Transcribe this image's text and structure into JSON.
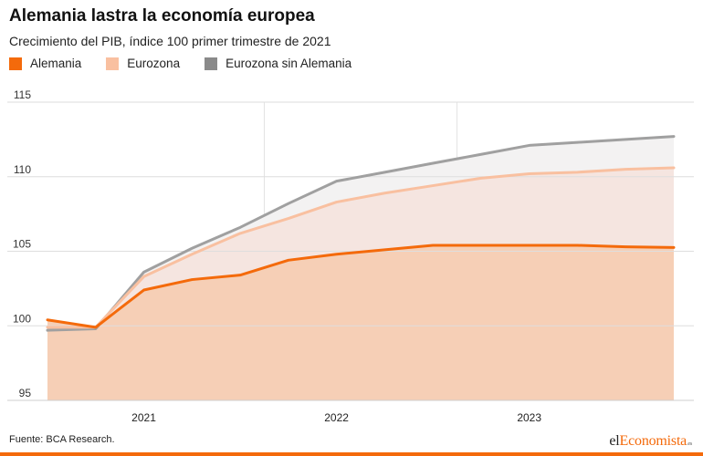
{
  "header": {
    "title": "Alemania lastra la economía europea",
    "subtitle": "Crecimiento del PIB, índice 100 primer trimestre de 2021"
  },
  "legend": [
    {
      "label": "Alemania",
      "color": "#f46a0b"
    },
    {
      "label": "Eurozona",
      "color": "#f9c0a0"
    },
    {
      "label": "Eurozona sin Alemania",
      "color": "#8a8a8a"
    }
  ],
  "footer": {
    "source": "Fuente: BCA Research.",
    "logo_prefix": "el",
    "logo_accent": "Economista",
    "logo_suffix": ".es"
  },
  "chart_data": {
    "type": "area",
    "title": "Alemania lastra la economía europea",
    "subtitle": "Crecimiento del PIB, índice 100 primer trimestre de 2021",
    "x": [
      2020.25,
      2020.5,
      2020.75,
      2021.0,
      2021.25,
      2021.5,
      2021.75,
      2022.0,
      2022.25,
      2022.5,
      2022.75,
      2023.0,
      2023.25,
      2023.5
    ],
    "x_ticks": [
      {
        "label": "2021",
        "value": 2020.75
      },
      {
        "label": "2022",
        "value": 2021.75
      },
      {
        "label": "2023",
        "value": 2022.75
      }
    ],
    "ylim": [
      95,
      115
    ],
    "yticks": [
      95,
      100,
      105,
      110,
      115
    ],
    "grid": true,
    "series": [
      {
        "name": "Alemania",
        "color": "#f46a0b",
        "fill": "#f6cfb6",
        "values": [
          100.4,
          99.9,
          102.4,
          103.1,
          103.4,
          104.4,
          104.8,
          105.1,
          105.4,
          105.4,
          105.4,
          105.4,
          105.3,
          105.25
        ]
      },
      {
        "name": "Eurozona",
        "color": "#f9c0a0",
        "fill": "#f5e5e0",
        "values": [
          99.9,
          99.9,
          103.3,
          104.8,
          106.2,
          107.2,
          108.3,
          108.9,
          109.4,
          109.9,
          110.2,
          110.3,
          110.5,
          110.6
        ]
      },
      {
        "name": "Eurozona sin Alemania",
        "color": "#a0a0a0",
        "fill": "#f3f2f2",
        "values": [
          99.7,
          99.8,
          103.6,
          105.2,
          106.6,
          108.2,
          109.7,
          110.3,
          110.9,
          111.5,
          112.1,
          112.3,
          112.5,
          112.7
        ]
      }
    ]
  }
}
